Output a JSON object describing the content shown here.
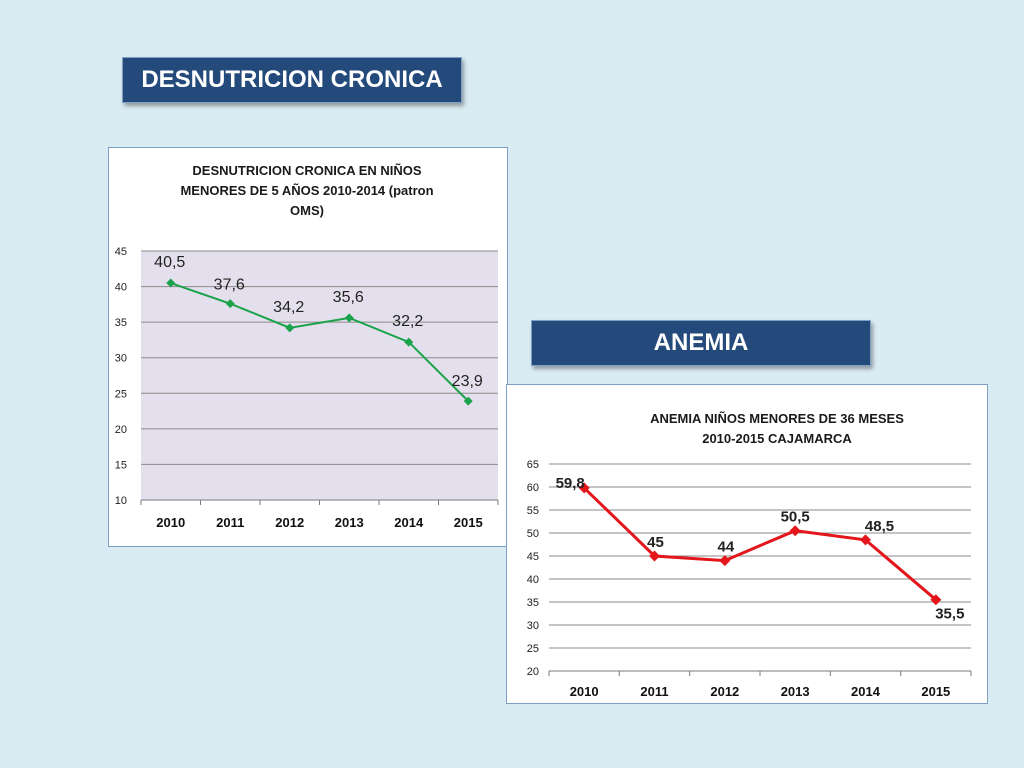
{
  "banners": {
    "desnutricion": "DESNUTRICION CRONICA",
    "anemia": "ANEMIA"
  },
  "chart_data": [
    {
      "type": "line",
      "title_lines": [
        "DESNUTRICION CRONICA EN NIÑOS",
        "MENORES DE 5 AÑOS 2010-2014  (patron",
        "OMS)"
      ],
      "categories": [
        "2010",
        "2011",
        "2012",
        "2013",
        "2014",
        "2015"
      ],
      "values": [
        40.5,
        37.6,
        34.2,
        35.6,
        32.2,
        23.9
      ],
      "data_labels": [
        "40,5",
        "37,6",
        "34,2",
        "35,6",
        "32,2",
        "23,9"
      ],
      "ylim": [
        10,
        45
      ],
      "yticks": [
        "10",
        "15",
        "20",
        "25",
        "30",
        "35",
        "40",
        "45"
      ],
      "grid": true,
      "legend": "none",
      "colors": {
        "line": "#1aa34a",
        "plot_bg": "#e4dfec",
        "grid": "#8a8a8a"
      }
    },
    {
      "type": "line",
      "title_lines": [
        "ANEMIA NIÑOS MENORES DE 36 MESES",
        "2010-2015 CAJAMARCA"
      ],
      "categories": [
        "2010",
        "2011",
        "2012",
        "2013",
        "2014",
        "2015"
      ],
      "values": [
        59.8,
        45,
        44,
        50.5,
        48.5,
        35.5
      ],
      "data_labels": [
        "59,8",
        "45",
        "44",
        "50,5",
        "48,5",
        "35,5"
      ],
      "ylim": [
        20,
        65
      ],
      "yticks": [
        "20",
        "25",
        "30",
        "35",
        "40",
        "45",
        "50",
        "55",
        "60",
        "65"
      ],
      "grid": true,
      "legend": "none",
      "colors": {
        "line": "#e3161c",
        "plot_bg": "#ffffff",
        "grid": "#8a8a8a"
      }
    }
  ]
}
